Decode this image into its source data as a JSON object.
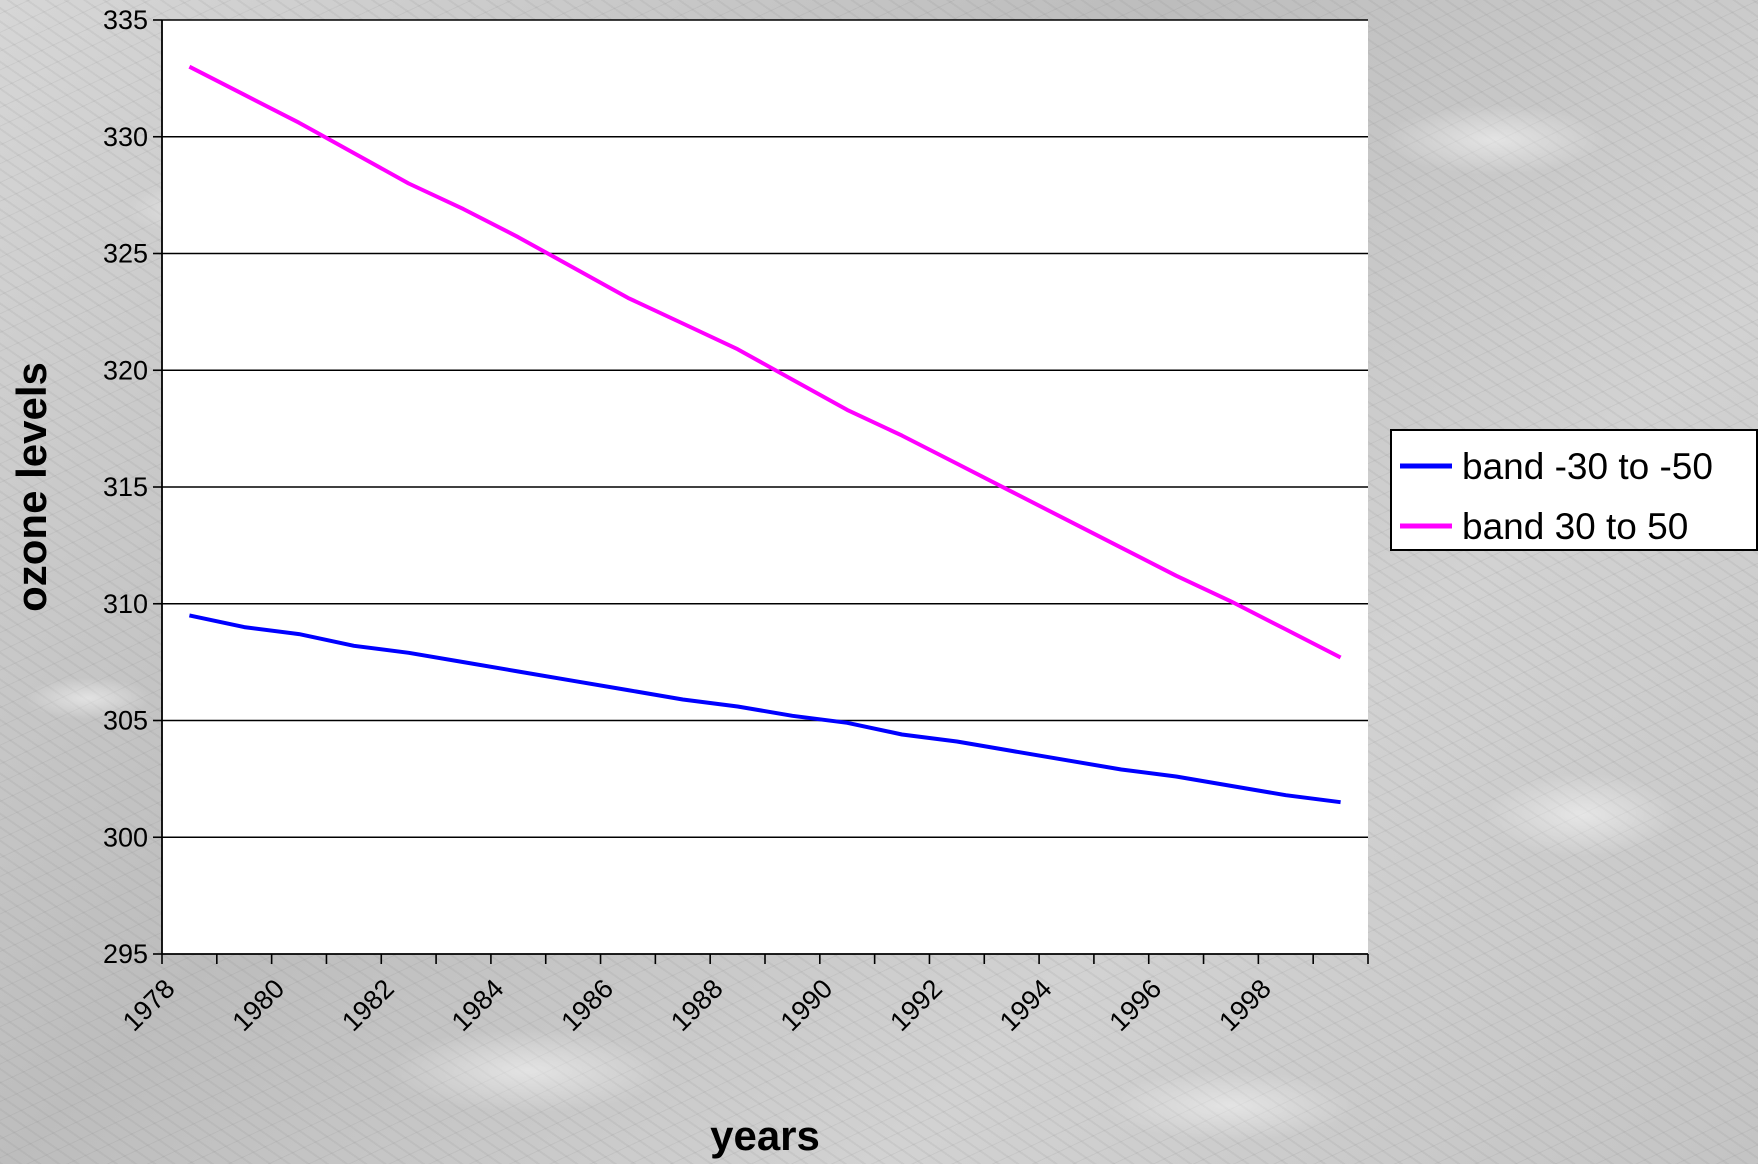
{
  "chart_data": {
    "type": "line",
    "title": "",
    "xlabel": "years",
    "ylabel": "ozone levels",
    "xlim": [
      1978,
      2000
    ],
    "ylim": [
      295,
      335
    ],
    "y_ticks": [
      295,
      300,
      305,
      310,
      315,
      320,
      325,
      330,
      335
    ],
    "x_tick_labels": [
      "1978",
      "1980",
      "1982",
      "1984",
      "1986",
      "1988",
      "1990",
      "1992",
      "1994",
      "1996",
      "1998"
    ],
    "grid": true,
    "legend_position": "right",
    "series": [
      {
        "name": "band -30 to -50",
        "color": "#0000ff",
        "x": [
          1978.5,
          1979.5,
          1980.5,
          1981.5,
          1982.5,
          1983.5,
          1984.5,
          1985.5,
          1986.5,
          1987.5,
          1988.5,
          1989.5,
          1990.5,
          1991.5,
          1992.5,
          1993.5,
          1994.5,
          1995.5,
          1996.5,
          1997.5,
          1998.5,
          1999.5
        ],
        "values": [
          309.5,
          309.0,
          308.7,
          308.2,
          307.9,
          307.5,
          307.1,
          306.7,
          306.3,
          305.9,
          305.6,
          305.2,
          304.9,
          304.4,
          304.1,
          303.7,
          303.3,
          302.9,
          302.6,
          302.2,
          301.8,
          301.5
        ]
      },
      {
        "name": "band 30 to 50",
        "color": "#ff00ff",
        "x": [
          1978.5,
          1979.5,
          1980.5,
          1981.5,
          1982.5,
          1983.5,
          1984.5,
          1985.5,
          1986.5,
          1987.5,
          1988.5,
          1989.5,
          1990.5,
          1991.5,
          1992.5,
          1993.5,
          1994.5,
          1995.5,
          1996.5,
          1997.5,
          1998.5,
          1999.5
        ],
        "values": [
          333.0,
          331.8,
          330.6,
          329.3,
          328.0,
          326.9,
          325.7,
          324.4,
          323.1,
          322.0,
          320.9,
          319.6,
          318.3,
          317.2,
          316.0,
          314.8,
          313.6,
          312.4,
          311.2,
          310.1,
          308.9,
          307.7
        ]
      }
    ]
  }
}
